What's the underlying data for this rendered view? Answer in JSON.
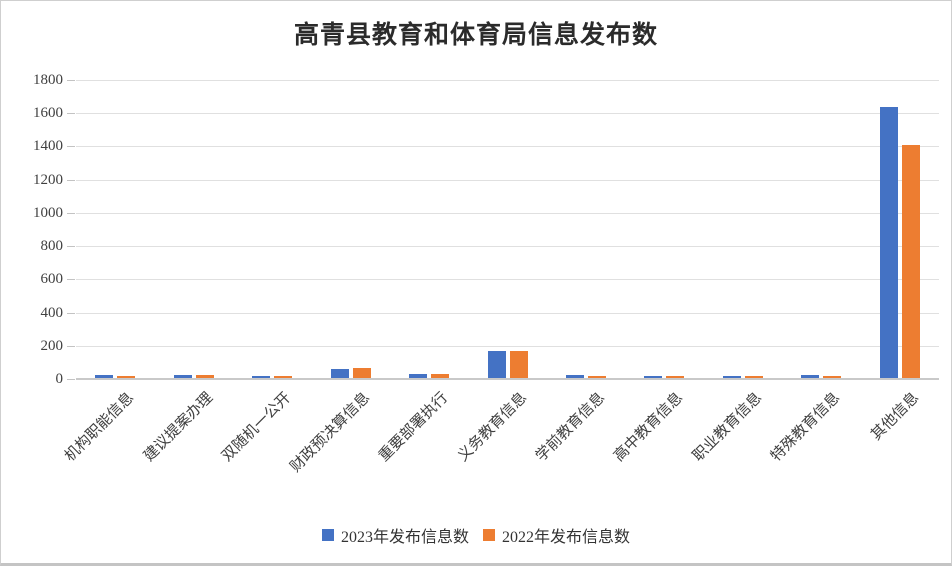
{
  "chart_data": {
    "type": "bar",
    "title": "高青县教育和体育局信息发布数",
    "categories": [
      "机构职能信息",
      "建议提案办理",
      "双随机一公开",
      "财政预决算信息",
      "重要部署执行",
      "义务教育信息",
      "学前教育信息",
      "高中教育信息",
      "职业教育信息",
      "特殊教育信息",
      "其他信息"
    ],
    "series": [
      {
        "name": "2023年发布信息数",
        "color": "#4472C4",
        "values": [
          20,
          20,
          13,
          55,
          26,
          165,
          21,
          15,
          15,
          18,
          1630
        ]
      },
      {
        "name": "2022年发布信息数",
        "color": "#ED7D31",
        "values": [
          12,
          18,
          8,
          58,
          23,
          165,
          12,
          14,
          12,
          14,
          1400
        ]
      }
    ],
    "ylim": [
      0,
      1800
    ],
    "ytick_interval": 200,
    "ytick_labels": [
      "0",
      "200",
      "400",
      "600",
      "800",
      "1000",
      "1200",
      "1400",
      "1600",
      "1800"
    ],
    "grid": true,
    "legend_position": "bottom",
    "colors": {
      "grid": "#e0e0e0",
      "axis": "#c9c9c9",
      "text": "#404040"
    }
  }
}
